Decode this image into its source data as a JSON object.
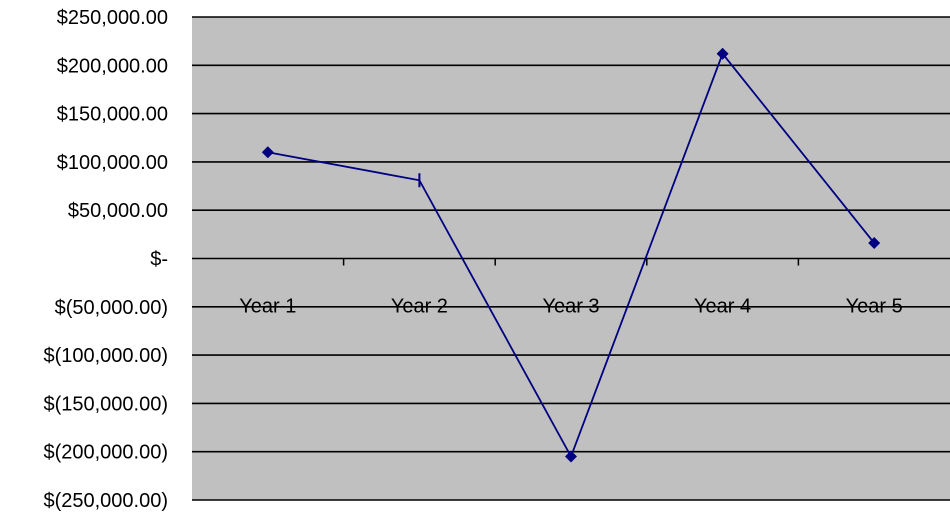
{
  "chart_data": {
    "type": "line",
    "title": "",
    "xlabel": "",
    "ylabel": "",
    "categories": [
      "Year 1",
      "Year 2",
      "Year 3",
      "Year 4",
      "Year 5"
    ],
    "series": [
      {
        "values": [
          110000,
          81000,
          -205000,
          212000,
          16000
        ],
        "color": "#000080"
      }
    ],
    "ylim": [
      -250000,
      250000
    ],
    "y_ticks": [
      250000,
      200000,
      150000,
      100000,
      50000,
      0,
      -50000,
      -100000,
      -150000,
      -200000,
      -250000
    ],
    "y_tick_labels": [
      "$250,000.00",
      "$200,000.00",
      "$150,000.00",
      "$100,000.00",
      "$50,000.00",
      "$-",
      "$(50,000.00)",
      "$(100,000.00)",
      "$(150,000.00)",
      "$(200,000.00)",
      "$(250,000.00)"
    ],
    "grid": true,
    "legend": "none",
    "plot_background": "#c0c0c0",
    "gridline_color": "#000000",
    "marker": "diamond"
  }
}
